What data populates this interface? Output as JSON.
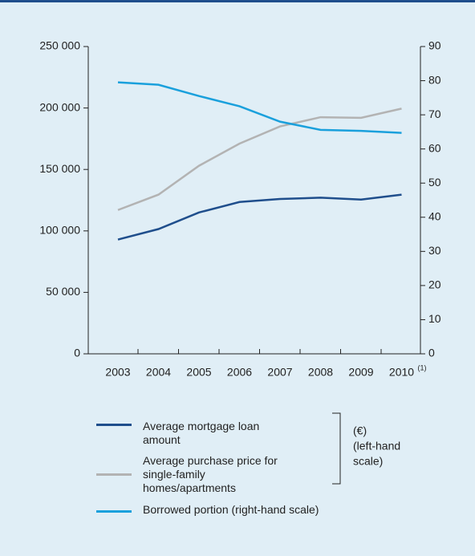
{
  "chart_data": {
    "type": "line",
    "categories": [
      "2003",
      "2004",
      "2005",
      "2006",
      "2007",
      "2008",
      "2009",
      "2010"
    ],
    "x_footnote": "(1)",
    "series": [
      {
        "name": "Average mortgage loan amount",
        "color": "#1f4e8c",
        "values": [
          93000,
          101500,
          115000,
          123500,
          126000,
          127000,
          125500,
          129500
        ]
      },
      {
        "name": "Average purchase price for single-family homes/apartments",
        "color": "#b3b3b3",
        "values": [
          117000,
          129500,
          153000,
          171000,
          185000,
          192500,
          192000,
          199500
        ]
      },
      {
        "name": "Borrowed portion (right-hand scale)",
        "color": "#1aa0dc",
        "axis": "y2",
        "values": [
          79.5,
          78.8,
          75.5,
          72.5,
          68,
          65.6,
          65.3,
          64.7
        ]
      }
    ],
    "bracket_note": [
      "(€)",
      "(left-hand",
      "scale)"
    ],
    "ylim": [
      0,
      250000
    ],
    "yticks": [
      {
        "value": 0,
        "label": "0"
      },
      {
        "value": 50000,
        "label": "50 000"
      },
      {
        "value": 100000,
        "label": "100 000"
      },
      {
        "value": 150000,
        "label": "150 000"
      },
      {
        "value": 200000,
        "label": "200 000"
      },
      {
        "value": 250000,
        "label": "250 000"
      }
    ],
    "y2lim": [
      0,
      90
    ],
    "y2ticks": [
      0,
      10,
      20,
      30,
      40,
      50,
      60,
      70,
      80,
      90
    ]
  }
}
